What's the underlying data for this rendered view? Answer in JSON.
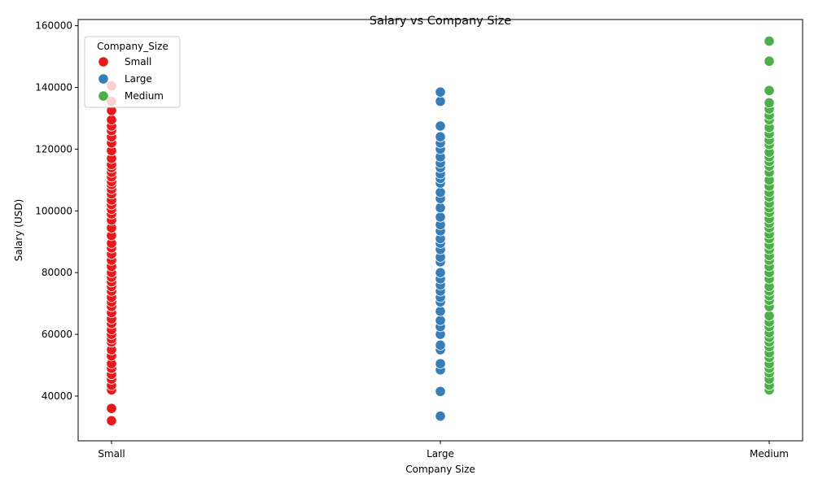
{
  "chart_data": {
    "type": "scatter",
    "title": "Salary vs Company Size",
    "xlabel": "Company Size",
    "ylabel": "Salary (USD)",
    "categories": [
      "Small",
      "Large",
      "Medium"
    ],
    "ylim": [
      25500,
      162000
    ],
    "yticks": [
      40000,
      60000,
      80000,
      100000,
      120000,
      140000,
      160000
    ],
    "grid": false,
    "legend": {
      "title": "Company_Size",
      "placement": "top-left",
      "entries": [
        "Small",
        "Large",
        "Medium"
      ]
    },
    "colors": {
      "Small": "#e41a1c",
      "Large": "#377eb8",
      "Medium": "#4daf4a"
    },
    "series": [
      {
        "name": "Small",
        "values": [
          32000,
          36000,
          42000,
          43500,
          45500,
          47000,
          49000,
          50500,
          53000,
          55000,
          57500,
          58500,
          60000,
          61500,
          63500,
          65000,
          67000,
          69000,
          70500,
          72000,
          74000,
          75500,
          77000,
          78500,
          80000,
          82000,
          84000,
          86000,
          88000,
          89500,
          92000,
          94500,
          97000,
          99000,
          100500,
          102000,
          103500,
          105500,
          107000,
          108500,
          109500,
          111000,
          112500,
          114000,
          115000,
          117000,
          119500,
          122000,
          124000,
          126000,
          127500,
          129500,
          132500,
          135500,
          140500
        ]
      },
      {
        "name": "Large",
        "values": [
          33500,
          41500,
          48500,
          50500,
          55000,
          56500,
          60000,
          62500,
          64500,
          67500,
          70500,
          72000,
          74000,
          76000,
          78000,
          80000,
          83500,
          85000,
          87500,
          89500,
          91000,
          93500,
          95500,
          98000,
          101000,
          104000,
          106000,
          109000,
          110500,
          112000,
          114000,
          115500,
          117500,
          120000,
          122000,
          124000,
          127500,
          135500,
          138500
        ]
      },
      {
        "name": "Medium",
        "values": [
          42000,
          43500,
          45500,
          47500,
          49000,
          50500,
          52500,
          54000,
          56000,
          57500,
          59000,
          60500,
          62500,
          64000,
          66000,
          69000,
          71000,
          72500,
          74000,
          75500,
          78000,
          80000,
          82000,
          84000,
          85500,
          87500,
          89000,
          91000,
          92500,
          94500,
          96000,
          97500,
          99500,
          101000,
          102500,
          104500,
          106000,
          108000,
          110000,
          112500,
          114500,
          116000,
          117500,
          119000,
          121500,
          123000,
          125000,
          127000,
          129500,
          131000,
          133000,
          135000,
          139000,
          148500,
          155000
        ]
      }
    ]
  }
}
